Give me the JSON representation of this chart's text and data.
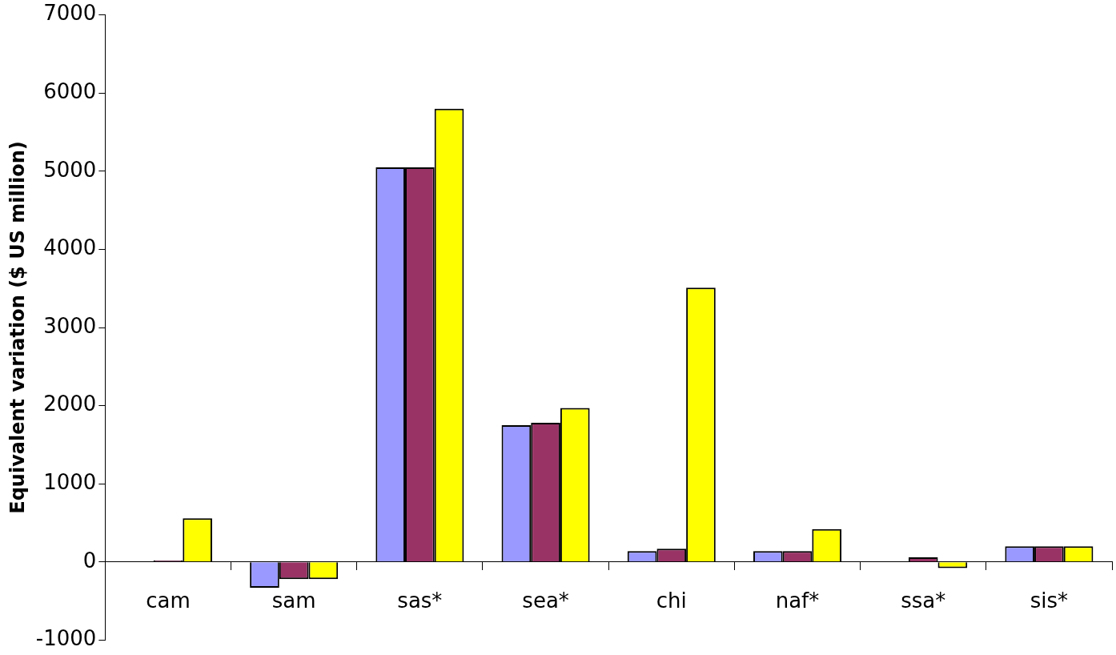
{
  "chart_data": {
    "type": "bar",
    "ylabel": "Equivalent variation ($ US million)",
    "categories": [
      "cam",
      "sam",
      "sas*",
      "sea*",
      "chi",
      "naf*",
      "ssa*",
      "sis*"
    ],
    "series": [
      {
        "color": "#9999ff",
        "values": [
          null,
          -330,
          5050,
          1750,
          140,
          140,
          null,
          200
        ]
      },
      {
        "color": "#993366",
        "values": [
          20,
          -220,
          5050,
          1780,
          170,
          140,
          60,
          200
        ]
      },
      {
        "color": "#ffff00",
        "values": [
          560,
          -220,
          5800,
          1970,
          3510,
          420,
          -80,
          200
        ]
      }
    ],
    "ylim": [
      -1000,
      7000
    ],
    "yticks": [
      -1000,
      0,
      1000,
      2000,
      3000,
      4000,
      5000,
      6000,
      7000
    ],
    "grid": false,
    "legend": false
  }
}
